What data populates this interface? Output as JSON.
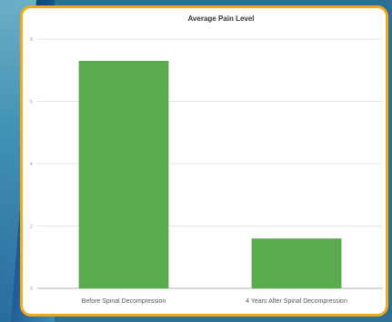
{
  "chart_data": {
    "type": "bar",
    "title": "Average Pain Level",
    "categories": [
      "Before Spinal Decompression",
      "4 Years After Spinal Decompression"
    ],
    "values": [
      7.3,
      1.6
    ],
    "yticks": [
      "0",
      "2",
      "4",
      "6",
      "8"
    ],
    "ylim": [
      0,
      8
    ],
    "grid": true,
    "bar_color": "#5aaa4e",
    "xlabel": "",
    "ylabel": ""
  },
  "colors": {
    "frame": "#f0a81e",
    "background": "#2f6f94"
  }
}
